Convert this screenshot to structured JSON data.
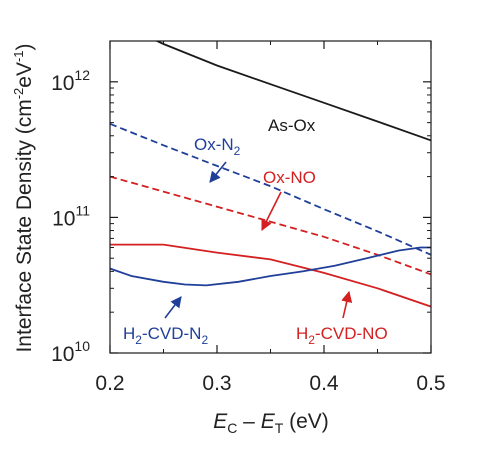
{
  "chart_data": {
    "type": "line",
    "title": "",
    "xlabel": {
      "e": "E",
      "c": "C",
      "minus": " – ",
      "e2": "E",
      "t": "T",
      "unit": " (eV)"
    },
    "ylabel": {
      "main": "Interface State Density (cm",
      "exp1": "-2",
      "mid": "eV",
      "exp2": "-1",
      "end": ")"
    },
    "xlim": [
      0.2,
      0.5
    ],
    "ylim": [
      10000000000,
      2000000000000.0
    ],
    "yscale": "log",
    "xticks": [
      "0.2",
      "0.3",
      "0.4",
      "0.5"
    ],
    "yticks": [
      {
        "value": 10000000000,
        "base": "10",
        "exp": "10"
      },
      {
        "value": 100000000000,
        "base": "10",
        "exp": "11"
      },
      {
        "value": 1000000000000,
        "base": "10",
        "exp": "12"
      }
    ],
    "grid": false,
    "legend": "none",
    "series": [
      {
        "key": "as_ox",
        "color": "#1a1a1a",
        "dash": false,
        "x": [
          0.2,
          0.25,
          0.3,
          0.35,
          0.4,
          0.45,
          0.5
        ],
        "y": [
          2900000000000.0,
          1900000000000.0,
          1320000000000.0,
          960000000000.0,
          700000000000.0,
          510000000000.0,
          370000000000.0
        ]
      },
      {
        "key": "ox_n2",
        "color": "#1f3f99",
        "dash": true,
        "x": [
          0.2,
          0.25,
          0.3,
          0.35,
          0.4,
          0.45,
          0.5
        ],
        "y": [
          490000000000.0,
          340000000000.0,
          240000000000.0,
          170000000000.0,
          115000000000.0,
          79000000000.0,
          53000000000.0
        ]
      },
      {
        "key": "ox_no",
        "color": "#d42020",
        "dash": true,
        "x": [
          0.2,
          0.25,
          0.3,
          0.35,
          0.4,
          0.45,
          0.5
        ],
        "y": [
          200000000000.0,
          155000000000.0,
          120000000000.0,
          93000000000.0,
          72000000000.0,
          53000000000.0,
          38000000000.0
        ]
      },
      {
        "key": "h2_cvd_no",
        "color": "#d42020",
        "dash": false,
        "x": [
          0.2,
          0.25,
          0.3,
          0.35,
          0.4,
          0.45,
          0.5
        ],
        "y": [
          63000000000.0,
          63000000000.0,
          55000000000.0,
          49000000000.0,
          39000000000.0,
          30000000000.0,
          22000000000.0
        ]
      },
      {
        "key": "h2_cvd_n2",
        "color": "#1f3f99",
        "dash": false,
        "x": [
          0.2,
          0.22,
          0.25,
          0.27,
          0.29,
          0.32,
          0.35,
          0.38,
          0.41,
          0.44,
          0.47,
          0.49,
          0.5
        ],
        "y": [
          42000000000.0,
          37000000000.0,
          33500000000.0,
          32000000000.0,
          31500000000.0,
          33500000000.0,
          37000000000.0,
          40000000000.0,
          44000000000.0,
          50000000000.0,
          57000000000.0,
          60000000000.0,
          60000000000.0
        ]
      }
    ],
    "annotations": [
      {
        "key": "as_ox",
        "color": "#1a1a1a",
        "parts": [
          {
            "t": "As-Ox"
          }
        ]
      },
      {
        "key": "ox_n2",
        "color": "#1f3f99",
        "parts": [
          {
            "t": "Ox-N"
          },
          {
            "t": "2",
            "sub": true
          }
        ]
      },
      {
        "key": "ox_no",
        "color": "#d42020",
        "parts": [
          {
            "t": "Ox-NO"
          }
        ]
      },
      {
        "key": "h2_cvd_n2",
        "color": "#1f3f99",
        "parts": [
          {
            "t": "H"
          },
          {
            "t": "2",
            "sub": true
          },
          {
            "t": "-CVD-N"
          },
          {
            "t": "2",
            "sub": true
          }
        ]
      },
      {
        "key": "h2_cvd_no",
        "color": "#d42020",
        "parts": [
          {
            "t": "H"
          },
          {
            "t": "2",
            "sub": true
          },
          {
            "t": "-CVD-NO"
          }
        ]
      }
    ]
  }
}
